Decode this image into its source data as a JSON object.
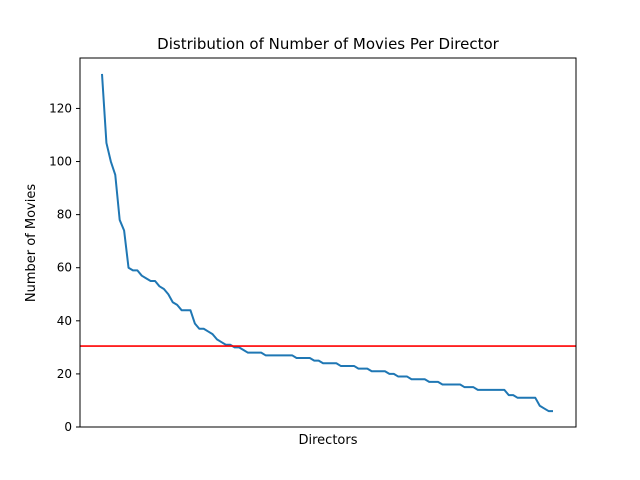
{
  "chart_data": {
    "type": "line",
    "title": "Distribution of Number of Movies Per Director",
    "xlabel": "Directors",
    "ylabel": "Number of Movies",
    "x_ticks": "none",
    "ylim": [
      0,
      139
    ],
    "yticks": [
      0,
      20,
      40,
      60,
      80,
      100,
      120
    ],
    "grid": false,
    "legend": "none",
    "series": [
      {
        "color": "#1f77b4",
        "values": [
          133,
          107,
          100,
          95,
          78,
          74,
          60,
          59,
          59,
          57,
          56,
          55,
          55,
          53,
          52,
          50,
          47,
          46,
          44,
          44,
          44,
          39,
          37,
          37,
          36,
          35,
          33,
          32,
          31,
          31,
          30,
          30,
          29,
          28,
          28,
          28,
          28,
          27,
          27,
          27,
          27,
          27,
          27,
          27,
          26,
          26,
          26,
          26,
          25,
          25,
          24,
          24,
          24,
          24,
          23,
          23,
          23,
          23,
          22,
          22,
          22,
          21,
          21,
          21,
          21,
          20,
          20,
          19,
          19,
          19,
          18,
          18,
          18,
          18,
          17,
          17,
          17,
          16,
          16,
          16,
          16,
          16,
          15,
          15,
          15,
          14,
          14,
          14,
          14,
          14,
          14,
          14,
          12,
          12,
          11,
          11,
          11,
          11,
          11,
          8,
          7,
          6,
          6
        ]
      }
    ],
    "reference_line": {
      "orientation": "horizontal",
      "y": 30.5,
      "color": "#ff0000"
    }
  }
}
